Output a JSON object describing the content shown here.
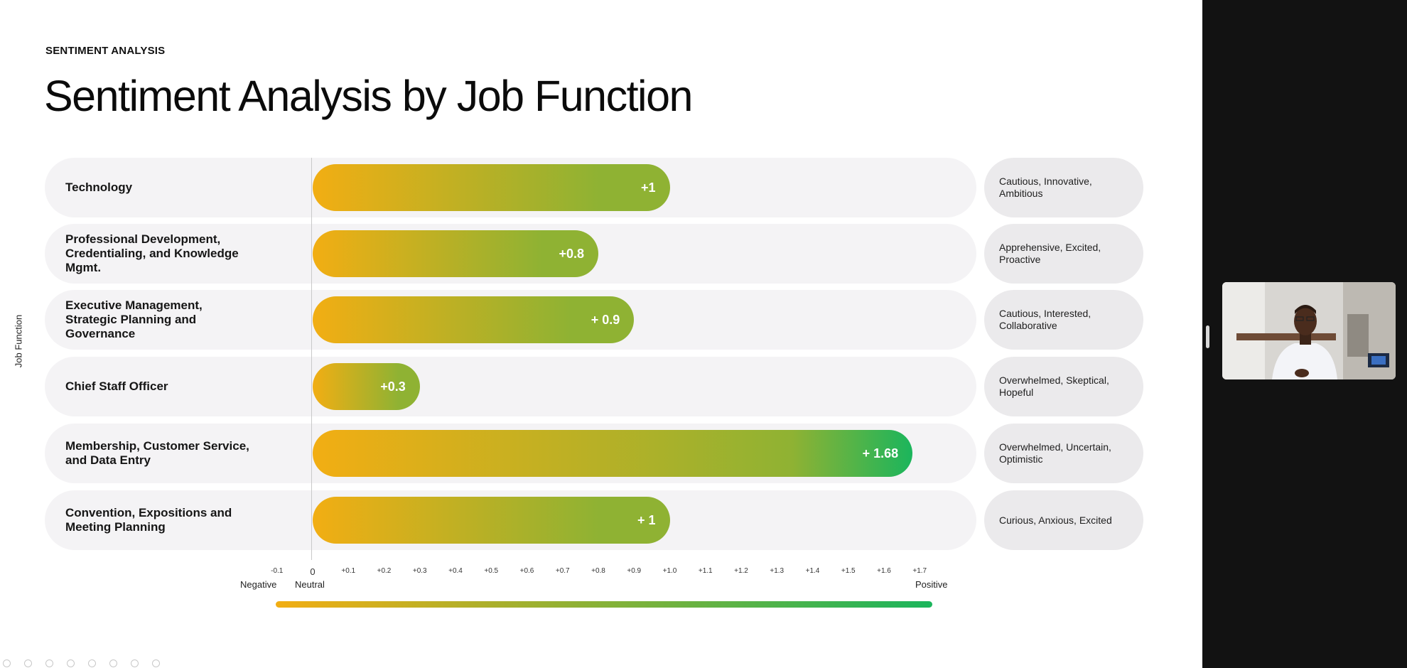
{
  "slide": {
    "eyebrow": "SENTIMENT ANALYSIS",
    "title": "Sentiment Analysis by Job Function",
    "y_axis_label": "Job Function"
  },
  "colors": {
    "negative": "#f2ae13",
    "positive": "#1bb55c",
    "row_bg": "#f4f3f5",
    "pill_bg": "#ebeaec",
    "sidebar_bg": "#121212"
  },
  "chart_data": {
    "type": "bar",
    "orientation": "horizontal",
    "title": "Sentiment Analysis by Job Function",
    "ylabel": "Job Function",
    "categories": [
      "Technology",
      "Professional Development, Credentialing, and Knowledge Mgmt.",
      "Executive Management, Strategic Planning and Governance",
      "Chief Staff Officer",
      "Membership, Customer Service, and Data Entry",
      "Convention, Expositions and Meeting Planning"
    ],
    "values": [
      1,
      0.8,
      0.9,
      0.3,
      1.68,
      1
    ],
    "value_labels": [
      "+1",
      "+0.8",
      "+ 0.9",
      "+0.3",
      "+ 1.68",
      "+ 1"
    ],
    "descriptors": [
      "Cautious, Innovative, Ambitious",
      "Apprehensive, Excited, Proactive",
      "Cautious, Interested, Collaborative",
      "Overwhelmed, Skeptical, Hopeful",
      "Overwhelmed, Uncertain, Optimistic",
      "Curious, Anxious, Excited"
    ],
    "xlim": [
      -0.1,
      1.7
    ],
    "tick_labels": [
      "-0.1",
      "0",
      "+0.1",
      "+0.2",
      "+0.3",
      "+0.4",
      "+0.5",
      "+0.6",
      "+0.7",
      "+0.8",
      "+0.9",
      "+1.0",
      "+1.1",
      "+1.2",
      "+1.3",
      "+1.4",
      "+1.5",
      "+1.6",
      "+1.7"
    ],
    "tick_values": [
      -0.1,
      0,
      0.1,
      0.2,
      0.3,
      0.4,
      0.5,
      0.6,
      0.7,
      0.8,
      0.9,
      1.0,
      1.1,
      1.2,
      1.3,
      1.4,
      1.5,
      1.6,
      1.7
    ],
    "axis_words": {
      "negative": "Negative",
      "neutral": "Neutral",
      "positive": "Positive"
    },
    "grid": false
  },
  "toolbar": {
    "icons": [
      "back-icon",
      "forward-icon",
      "pen-icon",
      "highlighter-icon",
      "zoom-icon",
      "caption-icon",
      "screen-icon",
      "more-icon"
    ]
  }
}
